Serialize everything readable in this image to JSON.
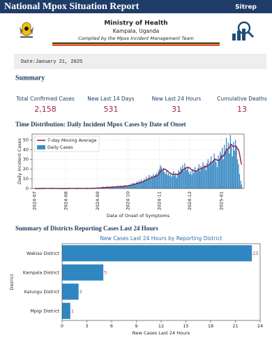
{
  "header": {
    "title": "National Mpox Situation Report",
    "tag": "Sitrep",
    "ministry": "Ministry of Health",
    "location": "Kampala, Uganda",
    "compiled_by": "Compiled by the Mpox Incident Management Team",
    "date": "Date:January 21, 2025"
  },
  "summary": {
    "title": "Summary",
    "cards": [
      {
        "label": "Total Confirmed Cases",
        "value": "2,158"
      },
      {
        "label": "New Last 14 Days",
        "value": "531"
      },
      {
        "label": "New Last 24 Hours",
        "value": "31"
      },
      {
        "label": "Cumulative Deaths",
        "value": "13"
      }
    ]
  },
  "sections": [
    "Time Distribution: Daily Incident Mpox Cases by Date of Onset",
    "Summary of Districts Reporting Cases Last 24 Hours"
  ],
  "chart_data": [
    {
      "type": "bar",
      "xlabel": "Date of Onset of Symptoms",
      "ylabel": "Daily Incident Cases",
      "ylim": [
        0,
        56
      ],
      "yticks": [
        0,
        10,
        20,
        30,
        40,
        50
      ],
      "grid": true,
      "legend": "upper left",
      "categories": [
        "2024-07",
        null,
        null,
        null,
        null,
        null,
        null,
        null,
        null,
        null,
        null,
        null,
        null,
        null,
        null,
        null,
        null,
        null,
        null,
        null,
        null,
        null,
        null,
        null,
        null,
        null,
        null,
        null,
        null,
        null,
        null,
        "2024-08",
        null,
        null,
        null,
        null,
        null,
        null,
        null,
        null,
        null,
        null,
        null,
        null,
        null,
        null,
        null,
        null,
        null,
        null,
        null,
        null,
        null,
        null,
        null,
        null,
        null,
        null,
        null,
        null,
        null,
        null,
        "2024-09",
        null,
        null,
        null,
        null,
        null,
        null,
        null,
        null,
        null,
        null,
        null,
        null,
        null,
        null,
        null,
        null,
        null,
        null,
        null,
        null,
        null,
        null,
        null,
        null,
        null,
        null,
        null,
        null,
        null,
        "2024-10",
        null,
        null,
        null,
        null,
        null,
        null,
        null,
        null,
        null,
        null,
        null,
        null,
        null,
        null,
        null,
        null,
        null,
        null,
        null,
        null,
        null,
        null,
        null,
        null,
        null,
        null,
        null,
        null,
        null,
        null,
        "2024-11",
        null,
        null,
        null,
        null,
        null,
        null,
        null,
        null,
        null,
        null,
        null,
        null,
        null,
        null,
        null,
        null,
        null,
        null,
        null,
        null,
        null,
        null,
        null,
        null,
        null,
        null,
        null,
        null,
        null,
        "2024-12",
        null,
        null,
        null,
        null,
        null,
        null,
        null,
        null,
        null,
        null,
        null,
        null,
        null,
        null,
        null,
        null,
        null,
        null,
        null,
        null,
        null,
        null,
        null,
        null,
        null,
        null,
        null,
        null,
        null,
        null,
        "2025-01",
        null,
        null,
        null,
        null,
        null,
        null,
        null,
        null,
        null,
        null,
        null,
        null,
        null,
        null,
        null,
        null,
        null,
        null,
        null,
        null
      ],
      "series": [
        {
          "name": "Daily Cases",
          "type": "bar",
          "color": "#3d8cc4",
          "values": [
            0,
            0,
            0,
            0,
            0,
            0,
            0,
            0,
            0,
            1,
            0,
            0,
            0,
            0,
            0,
            0,
            0,
            1,
            0,
            0,
            0,
            0,
            0,
            0,
            0,
            0,
            0,
            0,
            0,
            0,
            0,
            0,
            0,
            0,
            1,
            0,
            0,
            0,
            0,
            0,
            0,
            0,
            0,
            1,
            0,
            0,
            0,
            0,
            0,
            0,
            0,
            0,
            1,
            0,
            0,
            0,
            0,
            1,
            0,
            0,
            0,
            1,
            1,
            1,
            0,
            1,
            1,
            2,
            1,
            1,
            1,
            2,
            1,
            1,
            2,
            1,
            2,
            2,
            1,
            2,
            2,
            1,
            3,
            2,
            2,
            3,
            2,
            2,
            3,
            3,
            2,
            3,
            3,
            4,
            3,
            5,
            4,
            6,
            5,
            4,
            6,
            7,
            5,
            8,
            6,
            9,
            7,
            8,
            10,
            8,
            12,
            9,
            11,
            14,
            10,
            13,
            11,
            15,
            12,
            14,
            16,
            13,
            18,
            20,
            24,
            22,
            18,
            21,
            17,
            15,
            19,
            14,
            16,
            13,
            15,
            12,
            14,
            18,
            13,
            16,
            11,
            15,
            19,
            17,
            22,
            20,
            24,
            18,
            26,
            21,
            19,
            23,
            17,
            15,
            18,
            14,
            20,
            16,
            22,
            19,
            17,
            21,
            25,
            18,
            23,
            20,
            27,
            22,
            24,
            19,
            26,
            30,
            23,
            28,
            33,
            25,
            29,
            36,
            31,
            27,
            22,
            34,
            29,
            38,
            35,
            42,
            30,
            45,
            38,
            52,
            40,
            47,
            36,
            55,
            44,
            33,
            48,
            39,
            50,
            42,
            30,
            25,
            15,
            8,
            4
          ]
        },
        {
          "name": "7-day Moving Average",
          "type": "line",
          "color": "#8b1a4a",
          "values": [
            0,
            0,
            0,
            0,
            0,
            0,
            0,
            0,
            0,
            0.1,
            0.1,
            0.1,
            0.1,
            0.1,
            0.1,
            0.1,
            0,
            0.1,
            0.1,
            0.1,
            0.1,
            0.1,
            0.1,
            0.1,
            0,
            0,
            0,
            0,
            0,
            0,
            0,
            0,
            0,
            0,
            0.1,
            0.1,
            0.1,
            0.1,
            0.1,
            0.1,
            0.1,
            0,
            0,
            0.1,
            0.1,
            0.1,
            0.1,
            0.1,
            0.1,
            0.1,
            0,
            0,
            0.1,
            0.1,
            0.1,
            0.1,
            0.1,
            0.3,
            0.3,
            0.3,
            0.3,
            0.4,
            0.4,
            0.6,
            0.6,
            0.6,
            0.7,
            0.9,
            1,
            1,
            1,
            1.3,
            1.3,
            1.3,
            1.3,
            1.3,
            1.6,
            1.6,
            1.6,
            1.6,
            1.7,
            1.7,
            1.9,
            1.9,
            2,
            2.1,
            2.1,
            2.1,
            2.4,
            2.6,
            2.6,
            2.6,
            2.7,
            3,
            3.1,
            3.3,
            3.6,
            4,
            4.3,
            4.4,
            4.7,
            5.3,
            5.3,
            5.9,
            5.9,
            6.4,
            6.9,
            7.1,
            7.6,
            8.1,
            8.6,
            9,
            9.6,
            10.3,
            10.6,
            11,
            11.4,
            12,
            12.3,
            12.4,
            13,
            13.5,
            14.3,
            15.7,
            17.3,
            18.6,
            19,
            19.9,
            20,
            19.6,
            18.9,
            18,
            17.1,
            16.4,
            15.6,
            15,
            14.7,
            14.9,
            14.4,
            14.6,
            14.6,
            14.6,
            15.3,
            15.4,
            16.4,
            17.4,
            19,
            19.3,
            20.9,
            21.1,
            21.4,
            21.6,
            21.2,
            21.3,
            19.9,
            19.1,
            18.4,
            18.3,
            17.7,
            17.7,
            18.1,
            18.4,
            19.6,
            19.8,
            20.9,
            20.6,
            21.6,
            22.3,
            23,
            22.1,
            23,
            24,
            24,
            25.4,
            26.1,
            26.3,
            28.3,
            29.4,
            29.9,
            29.9,
            28.9,
            29.1,
            29.1,
            31,
            32.6,
            33,
            33.4,
            35.3,
            36,
            40.1,
            40.3,
            41.4,
            41.7,
            44.7,
            45.4,
            43.9,
            43,
            43.3,
            43.9,
            43,
            40.9,
            39.9,
            35.7,
            29.6,
            24.7
          ]
        }
      ]
    },
    {
      "type": "barh",
      "title": "New Cases Last 24 Hours by Reporting District",
      "xlabel": "New Cases Last 24 Hours",
      "ylabel": "District",
      "color": "#2f86c0",
      "label_color": "#b0305a",
      "categories": [
        "Wakiso District",
        "Kampala District",
        "Kalungu District",
        "Mpigi District"
      ],
      "values": [
        23,
        5,
        2,
        1
      ],
      "xlim": [
        0,
        24
      ],
      "xticks": [
        0,
        3,
        6,
        9,
        12,
        15,
        18,
        21,
        24
      ]
    }
  ]
}
